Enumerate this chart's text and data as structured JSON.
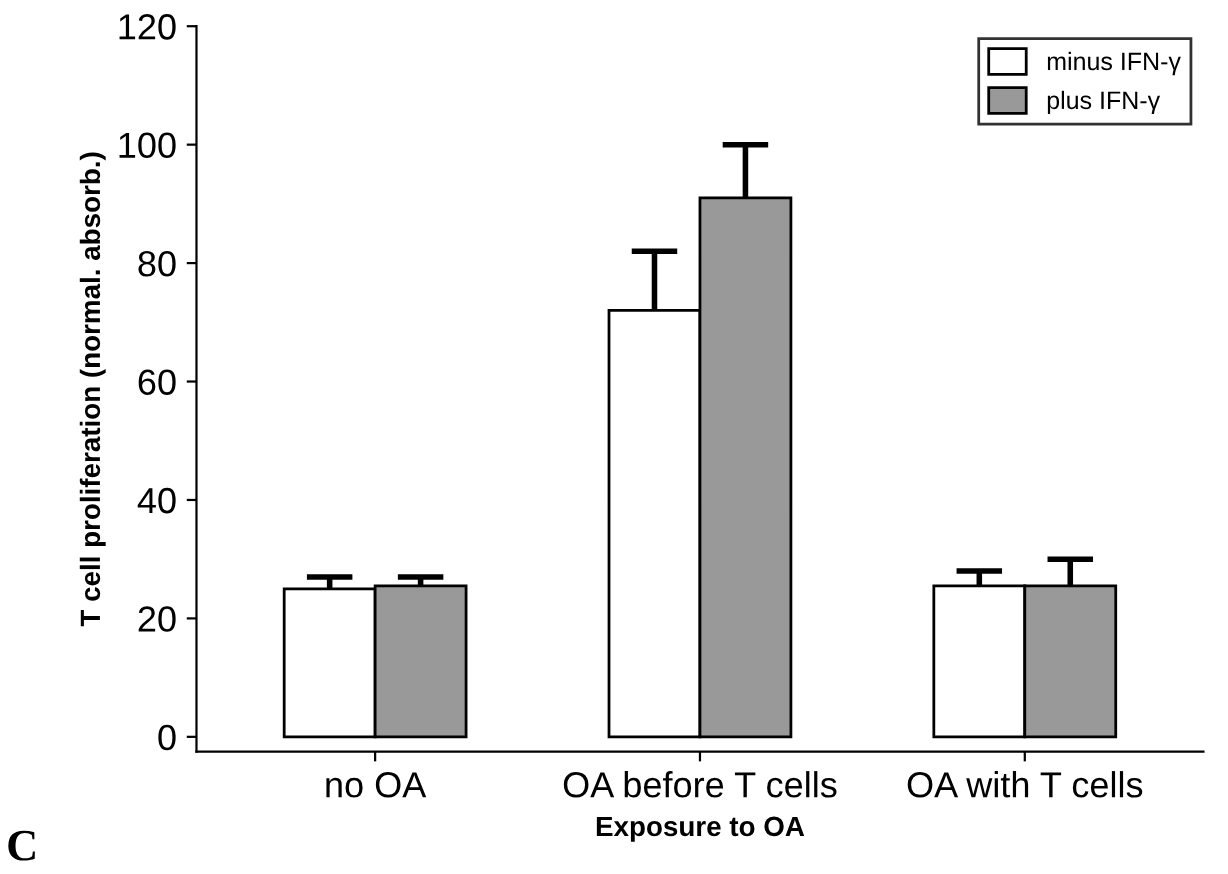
{
  "chart_data": {
    "type": "bar",
    "xlabel": "Exposure to OA",
    "ylabel": "T cell proliferation (normal. absorb.)",
    "categories": [
      "no OA",
      "OA before T cells",
      "OA with T cells"
    ],
    "series": [
      {
        "name": "minus IFN-γ",
        "color": "#ffffff",
        "values": [
          25,
          72,
          25.5
        ],
        "errors": [
          [
            25,
            27
          ],
          [
            72,
            82
          ],
          [
            25.5,
            28
          ]
        ]
      },
      {
        "name": "plus IFN-γ",
        "color": "#999999",
        "values": [
          25.5,
          91,
          25.5
        ],
        "errors": [
          [
            25.5,
            27
          ],
          [
            91,
            100
          ],
          [
            25.5,
            30
          ]
        ]
      }
    ],
    "ylim": [
      -2.5,
      120
    ],
    "yticks": [
      0,
      20,
      40,
      60,
      80,
      100,
      120
    ],
    "grid": false,
    "legend": "top right",
    "annotations": [
      "C"
    ]
  }
}
